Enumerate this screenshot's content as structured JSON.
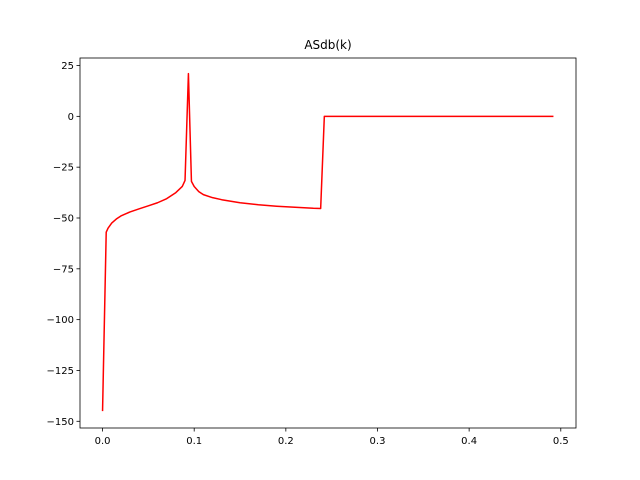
{
  "chart_data": {
    "type": "line",
    "title": "ASdb(k)",
    "xlabel": "",
    "ylabel": "",
    "xlim": [
      -0.0246,
      0.5166
    ],
    "ylim": [
      -153.3,
      28.7
    ],
    "grid": false,
    "xticks": [
      0.0,
      0.1,
      0.2,
      0.3,
      0.4,
      0.5
    ],
    "xtick_labels": [
      "0.0",
      "0.1",
      "0.2",
      "0.3",
      "0.4",
      "0.5"
    ],
    "yticks": [
      25,
      0,
      -25,
      -50,
      -75,
      -100,
      -125,
      -150
    ],
    "ytick_labels": [
      "25",
      "0",
      "−25",
      "−50",
      "−75",
      "−100",
      "−125",
      "−150"
    ],
    "series": [
      {
        "color": "#ff0000",
        "x": [
          0.0,
          0.004,
          0.006,
          0.01,
          0.015,
          0.02,
          0.03,
          0.04,
          0.05,
          0.06,
          0.07,
          0.08,
          0.087,
          0.09,
          0.0937,
          0.097,
          0.1,
          0.105,
          0.11,
          0.12,
          0.13,
          0.15,
          0.17,
          0.19,
          0.21,
          0.23,
          0.238,
          0.242,
          0.25,
          0.3,
          0.35,
          0.4,
          0.45,
          0.492
        ],
        "y": [
          -145,
          -57,
          -55,
          -52.5,
          -50.5,
          -49,
          -47,
          -45.5,
          -44,
          -42.5,
          -40.5,
          -37.5,
          -34.5,
          -31.5,
          21,
          -32,
          -34.5,
          -37,
          -38.5,
          -40,
          -41,
          -42.5,
          -43.5,
          -44.2,
          -44.7,
          -45.2,
          -45.3,
          0,
          0,
          0,
          0,
          0,
          0,
          0
        ]
      }
    ]
  }
}
